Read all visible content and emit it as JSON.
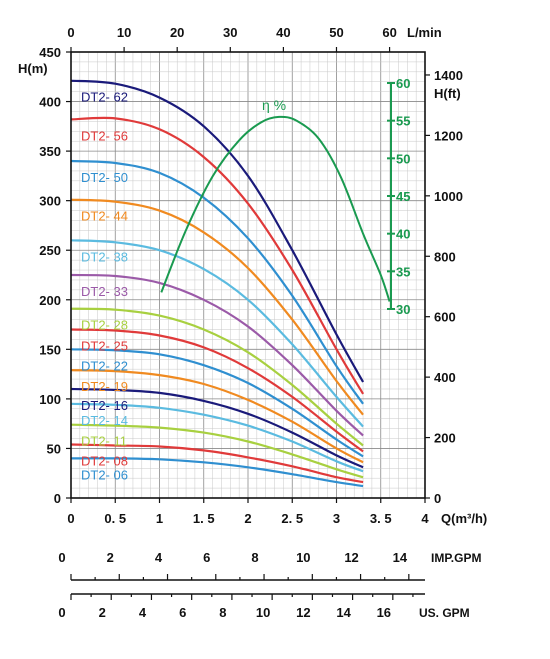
{
  "chart_data": {
    "type": "line",
    "axes": {
      "x_bottom": {
        "label": "Q(m³/h)",
        "ticks": [
          "0",
          "0. 5",
          "1",
          "1. 5",
          "2",
          "2. 5",
          "3",
          "3. 5",
          "4"
        ],
        "range": [
          0,
          4
        ]
      },
      "x_top": {
        "label": "L/min",
        "ticks": [
          "0",
          "10",
          "20",
          "30",
          "40",
          "50",
          "60"
        ],
        "range": [
          0,
          66.67
        ]
      },
      "y_left": {
        "label": "H(m)",
        "ticks": [
          "0",
          "50",
          "100",
          "150",
          "200",
          "250",
          "300",
          "350",
          "400",
          "450"
        ],
        "range": [
          0,
          450
        ]
      },
      "y_right": {
        "label": "H(ft)",
        "ticks": [
          "0",
          "200",
          "400",
          "600",
          "800",
          "1000",
          "1200",
          "1400"
        ],
        "range": [
          0,
          1476
        ]
      },
      "efficiency": {
        "label": "η %",
        "ticks": [
          "30",
          "35",
          "40",
          "45",
          "50",
          "55",
          "60"
        ],
        "range": [
          30,
          60
        ]
      },
      "imp_gpm": {
        "label": "IMP.GPM",
        "ticks": [
          "0",
          "2",
          "4",
          "6",
          "8",
          "10",
          "12",
          "14"
        ],
        "range": [
          0,
          14.67
        ]
      },
      "us_gpm": {
        "label": "US. GPM",
        "ticks": [
          "0",
          "2",
          "4",
          "6",
          "8",
          "10",
          "12",
          "14",
          "16"
        ],
        "range": [
          0,
          17.6
        ]
      }
    },
    "series": [
      {
        "name": "DT2- 62",
        "color": "#1a1a7a",
        "x": [
          0,
          0.5,
          1,
          1.5,
          2,
          2.5,
          3,
          3.3
        ],
        "y": [
          421,
          418,
          404,
          375,
          325,
          250,
          165,
          117
        ]
      },
      {
        "name": "DT2- 56",
        "color": "#e03a3a",
        "x": [
          0,
          0.5,
          1,
          1.5,
          2,
          2.5,
          3,
          3.3
        ],
        "y": [
          382,
          383,
          372,
          344,
          297,
          230,
          150,
          105
        ]
      },
      {
        "name": "DT2- 50",
        "color": "#2f8fd0",
        "x": [
          0,
          0.5,
          1,
          1.5,
          2,
          2.5,
          3,
          3.3
        ],
        "y": [
          340,
          338,
          328,
          303,
          262,
          204,
          133,
          95
        ]
      },
      {
        "name": "DT2- 44",
        "color": "#f08a20",
        "x": [
          0,
          0.5,
          1,
          1.5,
          2,
          2.5,
          3,
          3.3
        ],
        "y": [
          301,
          299,
          290,
          268,
          232,
          180,
          118,
          84
        ]
      },
      {
        "name": "DT2- 38",
        "color": "#5bbbe0",
        "x": [
          0,
          0.5,
          1,
          1.5,
          2,
          2.5,
          3,
          3.3
        ],
        "y": [
          260,
          258,
          250,
          231,
          200,
          155,
          102,
          72
        ]
      },
      {
        "name": "DT2- 33",
        "color": "#9b5aa8",
        "x": [
          0,
          0.5,
          1,
          1.5,
          2,
          2.5,
          3,
          3.3
        ],
        "y": [
          225,
          224,
          217,
          200,
          173,
          134,
          88,
          63
        ]
      },
      {
        "name": "DT2- 28",
        "color": "#a8d040",
        "x": [
          0,
          0.5,
          1,
          1.5,
          2,
          2.5,
          3,
          3.3
        ],
        "y": [
          191,
          190,
          184,
          170,
          147,
          114,
          75,
          53
        ]
      },
      {
        "name": "DT2- 25",
        "color": "#e03a3a",
        "x": [
          0,
          0.5,
          1,
          1.5,
          2,
          2.5,
          3,
          3.3
        ],
        "y": [
          170,
          169,
          164,
          152,
          131,
          102,
          67,
          47
        ]
      },
      {
        "name": "DT2- 22",
        "color": "#2f8fd0",
        "x": [
          0,
          0.5,
          1,
          1.5,
          2,
          2.5,
          3,
          3.3
        ],
        "y": [
          150,
          149,
          145,
          134,
          116,
          90,
          59,
          42
        ]
      },
      {
        "name": "DT2- 19",
        "color": "#f08a20",
        "x": [
          0,
          0.5,
          1,
          1.5,
          2,
          2.5,
          3,
          3.3
        ],
        "y": [
          129,
          128,
          124,
          115,
          99,
          77,
          50,
          36
        ]
      },
      {
        "name": "DT2- 16",
        "color": "#1a1a7a",
        "x": [
          0,
          0.5,
          1,
          1.5,
          2,
          2.5,
          3,
          3.3
        ],
        "y": [
          110,
          109,
          106,
          98,
          85,
          66,
          43,
          31
        ]
      },
      {
        "name": "DT2- 14",
        "color": "#5bbbe0",
        "x": [
          0,
          0.5,
          1,
          1.5,
          2,
          2.5,
          3,
          3.3
        ],
        "y": [
          95,
          94,
          91,
          84,
          73,
          57,
          37,
          27
        ]
      },
      {
        "name": "DT2- 11",
        "color": "#a8d040",
        "x": [
          0,
          0.5,
          1,
          1.5,
          2,
          2.5,
          3,
          3.3
        ],
        "y": [
          74,
          73,
          71,
          66,
          57,
          44,
          29,
          21
        ]
      },
      {
        "name": "DT2- 08",
        "color": "#e03a3a",
        "x": [
          0,
          0.5,
          1,
          1.5,
          2,
          2.5,
          3,
          3.3
        ],
        "y": [
          54,
          53,
          52,
          48,
          41,
          32,
          21,
          16
        ]
      },
      {
        "name": "DT2- 06",
        "color": "#2f8fd0",
        "x": [
          0,
          0.5,
          1,
          1.5,
          2,
          2.5,
          3,
          3.3
        ],
        "y": [
          40,
          40,
          39,
          36,
          31,
          24,
          16,
          12
        ]
      }
    ],
    "efficiency_curve": {
      "name": "η %",
      "color": "#1a9a50",
      "x": [
        1.02,
        1.3,
        1.6,
        1.9,
        2.15,
        2.35,
        2.55,
        2.8,
        3.05,
        3.3,
        3.5,
        3.6
      ],
      "y": [
        32.2,
        40.5,
        47.6,
        52.4,
        54.8,
        55.5,
        55.0,
        52.6,
        47.5,
        40.0,
        34.5,
        31.0
      ]
    },
    "grid": true,
    "legend": "inline-left"
  }
}
